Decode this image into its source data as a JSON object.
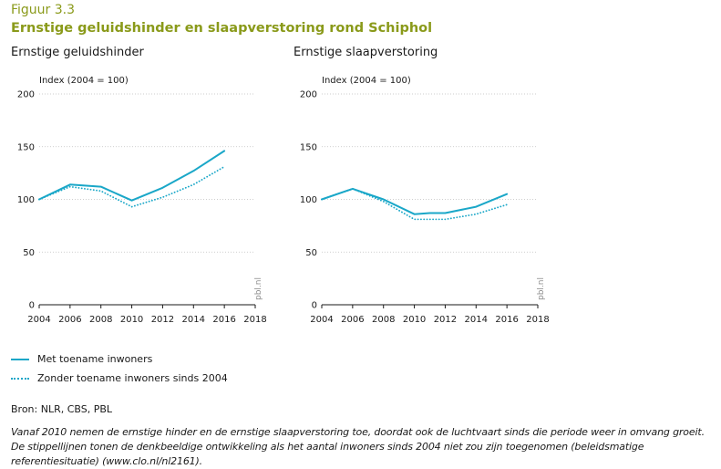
{
  "figure": {
    "label": "Figuur 3.3",
    "title": "Ernstige geluidshinder en slaapverstoring rond Schiphol"
  },
  "colors": {
    "accent": "#8a9a1a",
    "line": "#1aa7c8",
    "grid": "#bfbfbf",
    "axis": "#1a1a1a"
  },
  "watermark": "pbl.nl",
  "legend": {
    "items": [
      {
        "label": "Met toename inwoners",
        "style": "solid"
      },
      {
        "label": "Zonder toename inwoners sinds 2004",
        "style": "dotted"
      }
    ]
  },
  "source": "Bron: NLR, CBS, PBL",
  "caption": "Vanaf 2010 nemen de ernstige hinder en de ernstige slaapverstoring toe, doordat ook de luchtvaart sinds die periode weer in omvang groeit. De stippellijnen tonen de denkbeeldige ontwikkeling als het aantal inwoners sinds 2004 niet zou zijn toegenomen (beleidsmatige referentiesituatie) (www.clo.nl/nl2161).",
  "chart_data": [
    {
      "type": "line",
      "title": "Ernstige geluidshinder",
      "ylabel": "Index (2004 = 100)",
      "xlim": [
        2004,
        2018
      ],
      "ylim": [
        0,
        200
      ],
      "xticks": [
        "2004",
        "2006",
        "2008",
        "2010",
        "2012",
        "2014",
        "2016",
        "2018"
      ],
      "yticks": [
        "0",
        "50",
        "100",
        "150",
        "200"
      ],
      "grid": true,
      "series": [
        {
          "name": "Met toename inwoners",
          "x": [
            2004,
            2006,
            2008,
            2010,
            2012,
            2014,
            2016
          ],
          "values": [
            100,
            114,
            112,
            99,
            111,
            127,
            146
          ]
        },
        {
          "name": "Zonder toename inwoners sinds 2004",
          "x": [
            2004,
            2006,
            2008,
            2010,
            2012,
            2014,
            2016
          ],
          "values": [
            100,
            112,
            108,
            93,
            102,
            114,
            131
          ]
        }
      ]
    },
    {
      "type": "line",
      "title": "Ernstige slaapverstoring",
      "ylabel": "Index (2004 = 100)",
      "xlim": [
        2004,
        2018
      ],
      "ylim": [
        0,
        200
      ],
      "xticks": [
        "2004",
        "2006",
        "2008",
        "2010",
        "2012",
        "2014",
        "2016",
        "2018"
      ],
      "yticks": [
        "0",
        "50",
        "100",
        "150",
        "200"
      ],
      "grid": true,
      "series": [
        {
          "name": "Met toename inwoners",
          "x": [
            2004,
            2006,
            2008,
            2010,
            2011,
            2012,
            2014,
            2016
          ],
          "values": [
            100,
            110,
            100,
            86,
            87,
            87,
            93,
            105
          ]
        },
        {
          "name": "Zonder toename inwoners sinds 2004",
          "x": [
            2004,
            2006,
            2008,
            2010,
            2011,
            2012,
            2014,
            2016
          ],
          "values": [
            100,
            110,
            98,
            81,
            81,
            81,
            86,
            95
          ]
        }
      ]
    }
  ]
}
